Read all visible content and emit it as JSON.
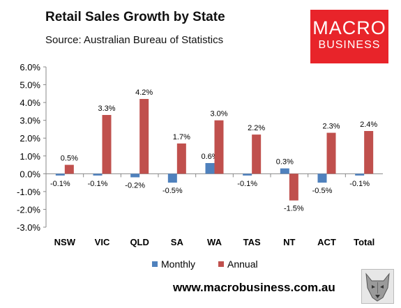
{
  "header": {
    "title": "Retail Sales Growth by State",
    "subtitle": "Source: Australian Bureau of Statistics"
  },
  "logo": {
    "line1": "MACRO",
    "line2": "BUSINESS",
    "color": "#e8242a"
  },
  "footer": {
    "url": "www.macrobusiness.com.au",
    "mascot_icon": "wolf-head-icon"
  },
  "chart_data": {
    "type": "bar",
    "categories": [
      "NSW",
      "VIC",
      "QLD",
      "SA",
      "WA",
      "TAS",
      "NT",
      "ACT",
      "Total"
    ],
    "series": [
      {
        "name": "Monthly",
        "color": "#4f81bd",
        "values": [
          -0.1,
          -0.1,
          -0.2,
          -0.5,
          0.6,
          -0.1,
          0.3,
          -0.5,
          -0.1
        ],
        "labels": [
          "-0.1%",
          "-0.1%",
          "-0.2%",
          "-0.5%",
          "0.6%",
          "-0.1%",
          "0.3%",
          "-0.5%",
          "-0.1%"
        ]
      },
      {
        "name": "Annual",
        "color": "#c0504d",
        "values": [
          0.5,
          3.3,
          4.2,
          1.7,
          3.0,
          2.2,
          -1.5,
          2.3,
          2.4
        ],
        "labels": [
          "0.5%",
          "3.3%",
          "4.2%",
          "1.7%",
          "3.0%",
          "2.2%",
          "-1.5%",
          "2.3%",
          "2.4%"
        ]
      }
    ],
    "ylim": [
      -3,
      6
    ],
    "yticks": [
      -3,
      -2,
      -1,
      0,
      1,
      2,
      3,
      4,
      5,
      6
    ],
    "ytick_labels": [
      "-3.0%",
      "-2.0%",
      "-1.0%",
      "0.0%",
      "1.0%",
      "2.0%",
      "3.0%",
      "4.0%",
      "5.0%",
      "6.0%"
    ],
    "grid": false,
    "legend_position": "bottom"
  }
}
